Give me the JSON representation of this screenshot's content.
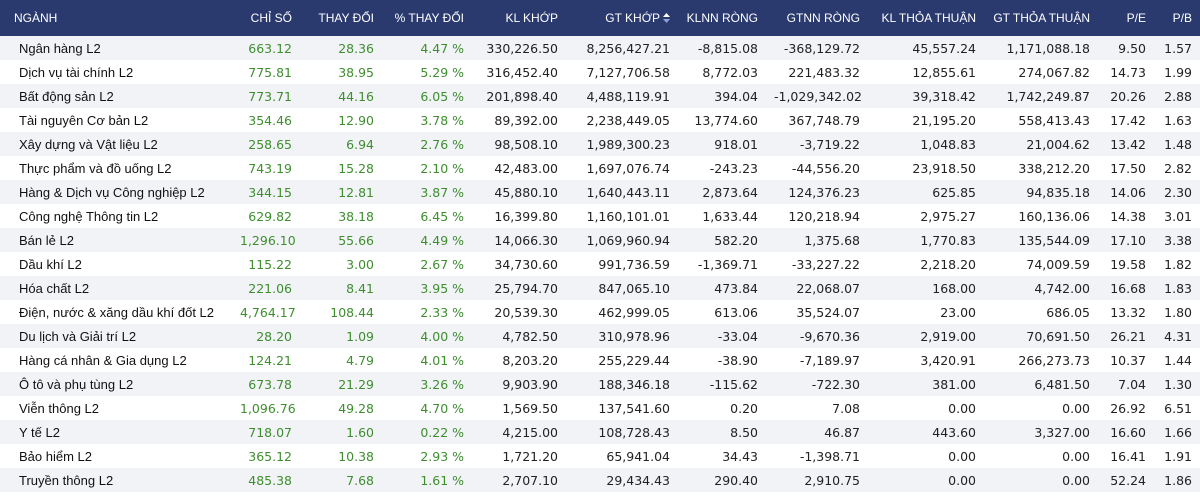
{
  "colors": {
    "header_bg": "#2a3a6e",
    "positive": "#3e8e2f",
    "row_alt": "#f2f3f7"
  },
  "header": {
    "sector": "NGÀNH",
    "index": "CHỈ SỐ",
    "change": "THAY ĐỔI",
    "pct_change": "% THAY ĐỔI",
    "matched_volume": "KL KHỚP",
    "matched_value": "GT KHỚP",
    "sort_icon": "sort-up-down-icon",
    "foreign_net_volume": "KLNN RÒNG",
    "foreign_net_value": "GTNN RÒNG",
    "deal_volume": "KL THỎA THUẬN",
    "deal_value": "GT THỎA THUẬN",
    "pe": "P/E",
    "pb": "P/B"
  },
  "rows": [
    {
      "name": "Ngân hàng L2",
      "index": "663.12",
      "change": "28.36",
      "pct": "4.47 %",
      "kl_khop": "330,226.50",
      "gt_khop": "8,256,427.21",
      "klnn": "-8,815.08",
      "gtnn": "-368,129.72",
      "kl_tt": "45,557.24",
      "gt_tt": "1,171,088.18",
      "pe": "9.50",
      "pb": "1.57"
    },
    {
      "name": "Dịch vụ tài chính L2",
      "index": "775.81",
      "change": "38.95",
      "pct": "5.29 %",
      "kl_khop": "316,452.40",
      "gt_khop": "7,127,706.58",
      "klnn": "8,772.03",
      "gtnn": "221,483.32",
      "kl_tt": "12,855.61",
      "gt_tt": "274,067.82",
      "pe": "14.73",
      "pb": "1.99"
    },
    {
      "name": "Bất động sản L2",
      "index": "773.71",
      "change": "44.16",
      "pct": "6.05 %",
      "kl_khop": "201,898.40",
      "gt_khop": "4,488,119.91",
      "klnn": "394.04",
      "gtnn": "-1,029,342.02",
      "kl_tt": "39,318.42",
      "gt_tt": "1,742,249.87",
      "pe": "20.26",
      "pb": "2.88"
    },
    {
      "name": "Tài nguyên Cơ bản L2",
      "index": "354.46",
      "change": "12.90",
      "pct": "3.78 %",
      "kl_khop": "89,392.00",
      "gt_khop": "2,238,449.05",
      "klnn": "13,774.60",
      "gtnn": "367,748.79",
      "kl_tt": "21,195.20",
      "gt_tt": "558,413.43",
      "pe": "17.42",
      "pb": "1.63"
    },
    {
      "name": "Xây dựng và Vật liệu L2",
      "index": "258.65",
      "change": "6.94",
      "pct": "2.76 %",
      "kl_khop": "98,508.10",
      "gt_khop": "1,989,300.23",
      "klnn": "918.01",
      "gtnn": "-3,719.22",
      "kl_tt": "1,048.83",
      "gt_tt": "21,004.62",
      "pe": "13.42",
      "pb": "1.48"
    },
    {
      "name": "Thực phẩm và đồ uống L2",
      "index": "743.19",
      "change": "15.28",
      "pct": "2.10 %",
      "kl_khop": "42,483.00",
      "gt_khop": "1,697,076.74",
      "klnn": "-243.23",
      "gtnn": "-44,556.20",
      "kl_tt": "23,918.50",
      "gt_tt": "338,212.20",
      "pe": "17.50",
      "pb": "2.82"
    },
    {
      "name": "Hàng & Dịch vụ Công nghiệp L2",
      "index": "344.15",
      "change": "12.81",
      "pct": "3.87 %",
      "kl_khop": "45,880.10",
      "gt_khop": "1,640,443.11",
      "klnn": "2,873.64",
      "gtnn": "124,376.23",
      "kl_tt": "625.85",
      "gt_tt": "94,835.18",
      "pe": "14.06",
      "pb": "2.30"
    },
    {
      "name": "Công nghệ Thông tin L2",
      "index": "629.82",
      "change": "38.18",
      "pct": "6.45 %",
      "kl_khop": "16,399.80",
      "gt_khop": "1,160,101.01",
      "klnn": "1,633.44",
      "gtnn": "120,218.94",
      "kl_tt": "2,975.27",
      "gt_tt": "160,136.06",
      "pe": "14.38",
      "pb": "3.01"
    },
    {
      "name": "Bán lẻ L2",
      "index": "1,296.10",
      "change": "55.66",
      "pct": "4.49 %",
      "kl_khop": "14,066.30",
      "gt_khop": "1,069,960.94",
      "klnn": "582.20",
      "gtnn": "1,375.68",
      "kl_tt": "1,770.83",
      "gt_tt": "135,544.09",
      "pe": "17.10",
      "pb": "3.38"
    },
    {
      "name": "Dầu khí L2",
      "index": "115.22",
      "change": "3.00",
      "pct": "2.67 %",
      "kl_khop": "34,730.60",
      "gt_khop": "991,736.59",
      "klnn": "-1,369.71",
      "gtnn": "-33,227.22",
      "kl_tt": "2,218.20",
      "gt_tt": "74,009.59",
      "pe": "19.58",
      "pb": "1.82"
    },
    {
      "name": "Hóa chất L2",
      "index": "221.06",
      "change": "8.41",
      "pct": "3.95 %",
      "kl_khop": "25,794.70",
      "gt_khop": "847,065.10",
      "klnn": "473.84",
      "gtnn": "22,068.07",
      "kl_tt": "168.00",
      "gt_tt": "4,742.00",
      "pe": "16.68",
      "pb": "1.83"
    },
    {
      "name": "Điện, nước & xăng dầu khí đốt L2",
      "index": "4,764.17",
      "change": "108.44",
      "pct": "2.33 %",
      "kl_khop": "20,539.30",
      "gt_khop": "462,999.05",
      "klnn": "613.06",
      "gtnn": "35,524.07",
      "kl_tt": "23.00",
      "gt_tt": "686.05",
      "pe": "13.32",
      "pb": "1.80"
    },
    {
      "name": "Du lịch và Giải trí L2",
      "index": "28.20",
      "change": "1.09",
      "pct": "4.00 %",
      "kl_khop": "4,782.50",
      "gt_khop": "310,978.96",
      "klnn": "-33.04",
      "gtnn": "-9,670.36",
      "kl_tt": "2,919.00",
      "gt_tt": "70,691.50",
      "pe": "26.21",
      "pb": "4.31"
    },
    {
      "name": "Hàng cá nhân & Gia dụng L2",
      "index": "124.21",
      "change": "4.79",
      "pct": "4.01 %",
      "kl_khop": "8,203.20",
      "gt_khop": "255,229.44",
      "klnn": "-38.90",
      "gtnn": "-7,189.97",
      "kl_tt": "3,420.91",
      "gt_tt": "266,273.73",
      "pe": "10.37",
      "pb": "1.44"
    },
    {
      "name": "Ô tô và phụ tùng L2",
      "index": "673.78",
      "change": "21.29",
      "pct": "3.26 %",
      "kl_khop": "9,903.90",
      "gt_khop": "188,346.18",
      "klnn": "-115.62",
      "gtnn": "-722.30",
      "kl_tt": "381.00",
      "gt_tt": "6,481.50",
      "pe": "7.04",
      "pb": "1.30"
    },
    {
      "name": "Viễn thông L2",
      "index": "1,096.76",
      "change": "49.28",
      "pct": "4.70 %",
      "kl_khop": "1,569.50",
      "gt_khop": "137,541.60",
      "klnn": "0.20",
      "gtnn": "7.08",
      "kl_tt": "0.00",
      "gt_tt": "0.00",
      "pe": "26.92",
      "pb": "6.51"
    },
    {
      "name": "Y tế L2",
      "index": "718.07",
      "change": "1.60",
      "pct": "0.22 %",
      "kl_khop": "4,215.00",
      "gt_khop": "108,728.43",
      "klnn": "8.50",
      "gtnn": "46.87",
      "kl_tt": "443.60",
      "gt_tt": "3,327.00",
      "pe": "16.60",
      "pb": "1.66"
    },
    {
      "name": "Bảo hiểm L2",
      "index": "365.12",
      "change": "10.38",
      "pct": "2.93 %",
      "kl_khop": "1,721.20",
      "gt_khop": "65,941.04",
      "klnn": "34.43",
      "gtnn": "-1,398.71",
      "kl_tt": "0.00",
      "gt_tt": "0.00",
      "pe": "16.41",
      "pb": "1.91"
    },
    {
      "name": "Truyền thông L2",
      "index": "485.38",
      "change": "7.68",
      "pct": "1.61 %",
      "kl_khop": "2,707.10",
      "gt_khop": "29,434.43",
      "klnn": "290.40",
      "gtnn": "2,910.75",
      "kl_tt": "0.00",
      "gt_tt": "0.00",
      "pe": "52.24",
      "pb": "1.86"
    }
  ]
}
